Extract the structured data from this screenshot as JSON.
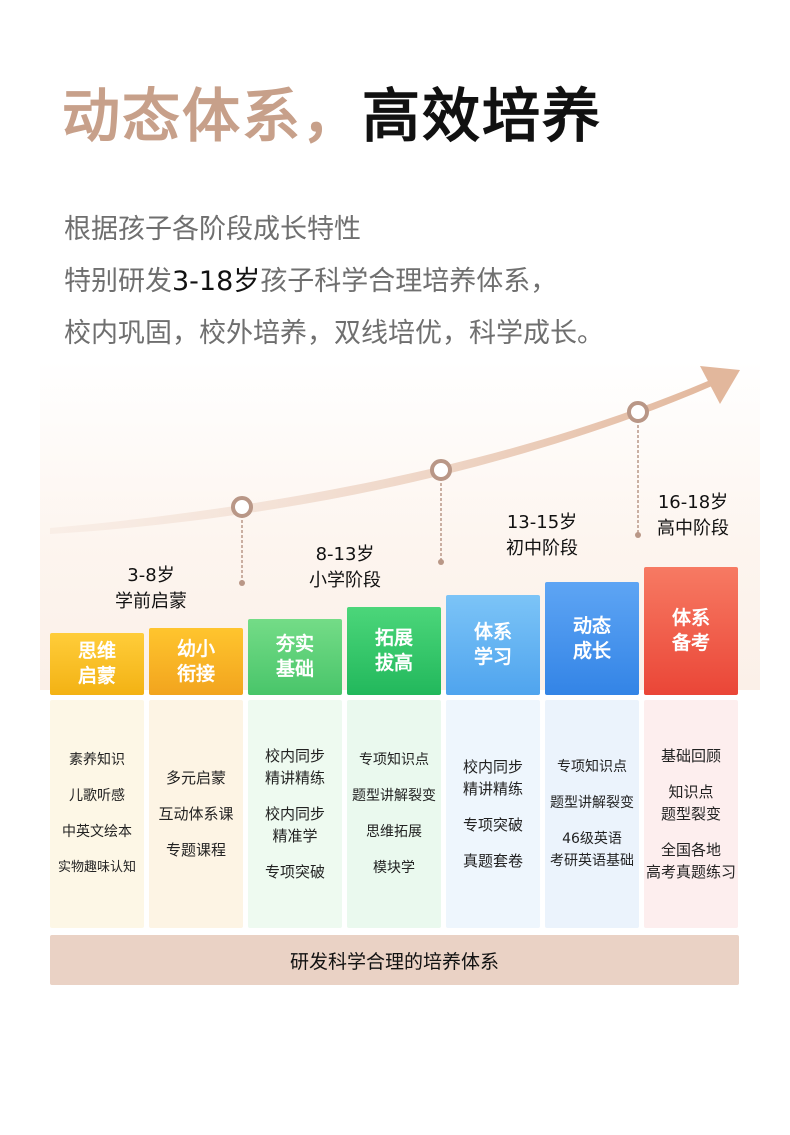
{
  "title": {
    "part1": "动态体系，",
    "part2": "高效培养"
  },
  "intro": {
    "line1": "根据孩子各阶段成长特性",
    "line2_pre": "特别研发",
    "line2_hl": "3-18岁",
    "line2_post": "孩子科学合理培养体系，",
    "line3": "校内巩固，校外培养，双线培优，科学成长。"
  },
  "stages": [
    {
      "age": "3-8岁",
      "name": "学前启蒙"
    },
    {
      "age": "8-13岁",
      "name": "小学阶段"
    },
    {
      "age": "13-15岁",
      "name": "初中阶段"
    },
    {
      "age": "16-18岁",
      "name": "高中阶段"
    }
  ],
  "columns": [
    {
      "head1": "思维",
      "head2": "启蒙",
      "items": [
        "素养知识",
        "儿歌听感",
        "中英文绘本",
        "实物趣味认知"
      ],
      "color": "#f6b81c"
    },
    {
      "head1": "幼小",
      "head2": "衔接",
      "items": [
        "多元启蒙",
        "互动体系课",
        "专题课程"
      ],
      "color": "#f5a623"
    },
    {
      "head1": "夯实",
      "head2": "基础",
      "items": [
        "校内同步\n精讲精练",
        "校内同步\n精准学",
        "专项突破"
      ],
      "color": "#55cf73"
    },
    {
      "head1": "拓展",
      "head2": "拔高",
      "items": [
        "专项知识点",
        "题型讲解裂变",
        "思维拓展",
        "模块学"
      ],
      "color": "#2bbf62"
    },
    {
      "head1": "体系",
      "head2": "学习",
      "items": [
        "校内同步\n精讲精练",
        "专项突破",
        "真题套卷"
      ],
      "color": "#5fb0f2"
    },
    {
      "head1": "动态",
      "head2": "成长",
      "items": [
        "专项知识点",
        "题型讲解裂变",
        "46级英语\n考研英语基础"
      ],
      "color": "#3f8fea"
    },
    {
      "head1": "体系",
      "head2": "备考",
      "items": [
        "基础回顾",
        "知识点\n题型裂变",
        "全国各地\n高考真题练习"
      ],
      "color": "#ee5443"
    }
  ],
  "banner": "研发科学合理的培养体系"
}
